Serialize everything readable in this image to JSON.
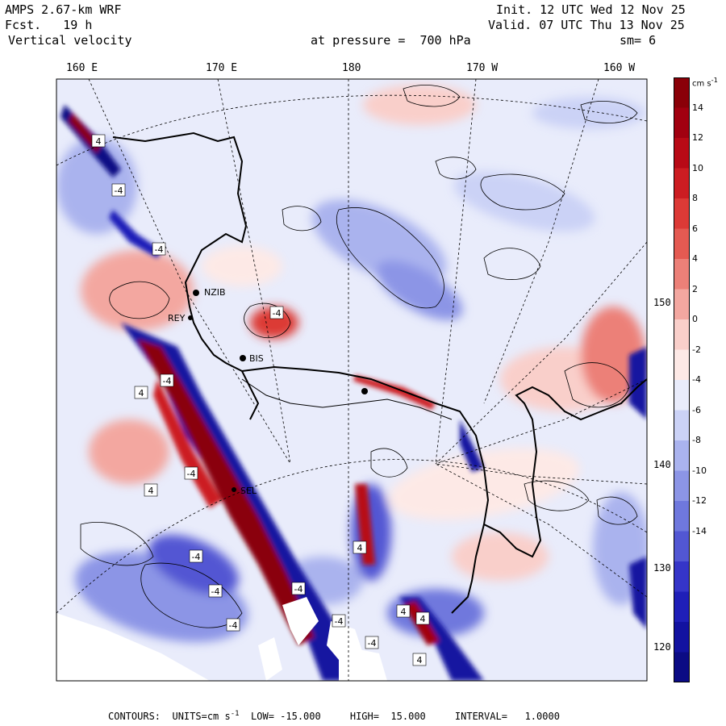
{
  "header": {
    "model": "AMPS 2.67-km WRF",
    "forecast": "Fcst.   19 h",
    "field": "Vertical velocity",
    "level": "at pressure =  700 hPa",
    "init": "Init. 12 UTC Wed 12 Nov 25",
    "valid": "Valid. 07 UTC Thu 13 Nov 25",
    "smoothing": "sm= 6"
  },
  "longitude_labels": [
    "160 E",
    "170 E",
    "180",
    "170 W",
    "160 W"
  ],
  "latitude_labels": [
    "150 W",
    "140 W",
    "130 W",
    "120 W"
  ],
  "stations": [
    "NZIB",
    "REY",
    "BIS",
    "SEL"
  ],
  "contour_labels": [
    "4",
    "-4",
    "-4",
    "-4",
    "4",
    "-4",
    "-4",
    "4",
    "-4",
    "-4",
    "-4",
    "-4",
    "4",
    "-4",
    "4",
    "4",
    "-4",
    "4"
  ],
  "colorbar": {
    "unit": "cm s",
    "unit_exp": "-1",
    "ticks": [
      "14",
      "12",
      "10",
      "8",
      "6",
      "4",
      "2",
      "0",
      "-2",
      "-4",
      "-6",
      "-8",
      "-10",
      "-12",
      "-14"
    ],
    "colors": [
      "#8a0008",
      "#a10010",
      "#b80a16",
      "#cc1d22",
      "#dc3a36",
      "#e45a52",
      "#ec8078",
      "#f3a7a0",
      "#f9cfca",
      "#fde9e6",
      "#e9ecfb",
      "#cbd2f6",
      "#aab3ee",
      "#8c95e6",
      "#6f78dd",
      "#5257d3",
      "#3535c8",
      "#1f1fb8",
      "#1212a0",
      "#0b0b84"
    ]
  },
  "footer": {
    "contours": "CONTOURS:  UNITS=cm s",
    "exp": "-1",
    "low": "LOW= -15.000",
    "high": "HIGH=  15.000",
    "interval": "INTERVAL=   1.0000"
  },
  "map_data": {
    "units": "cm s-1",
    "low": -15,
    "high": 15,
    "interval": 1,
    "pressure_hPa": 700
  }
}
